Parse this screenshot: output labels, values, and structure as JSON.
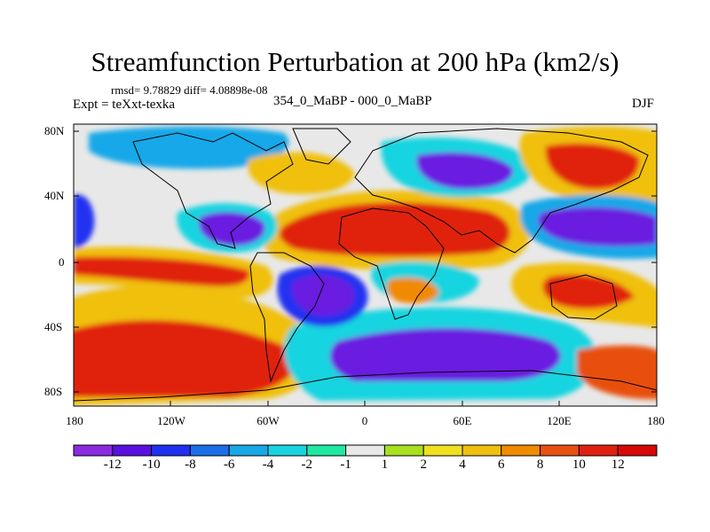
{
  "title": "Streamfunction Perturbation at 200 hPa (km2/s)",
  "stats": "rmsd= 9.78829  diff= 4.08898e-08",
  "experiment": "Expt = teXxt-texka",
  "subtitle": "354_0_MaBP - 000_0_MaBP",
  "season": "DJF",
  "map": {
    "lat_ticks": [
      "80N",
      "40N",
      "0",
      "40S",
      "80S"
    ],
    "lon_ticks": [
      "180",
      "120W",
      "60W",
      "0",
      "60E",
      "120E",
      "180"
    ]
  },
  "colorbar": {
    "labels": [
      "-12",
      "-10",
      "-8",
      "-6",
      "-4",
      "-2",
      "-1",
      "1",
      "2",
      "4",
      "6",
      "8",
      "10",
      "12"
    ],
    "colors": [
      "#8a2be2",
      "#5a10e0",
      "#2030f0",
      "#1a6fe8",
      "#18a8e8",
      "#19d4e0",
      "#20e8a0",
      "#e8e8e8",
      "#a8e020",
      "#f0e020",
      "#f0c010",
      "#f08a00",
      "#e85010",
      "#e02010",
      "#d80808"
    ]
  }
}
